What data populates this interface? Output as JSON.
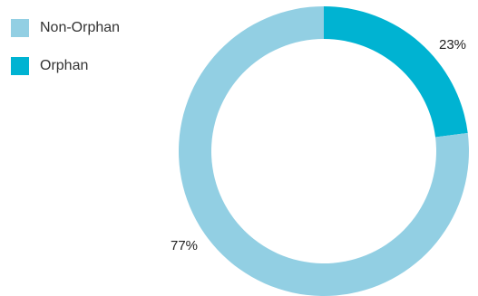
{
  "chart_data": {
    "type": "pie",
    "variant": "donut",
    "title": "",
    "legend_position": "top-left",
    "slices": [
      {
        "name": "Non-Orphan",
        "value": 77,
        "label": "77%",
        "color": "#92CFE3"
      },
      {
        "name": "Orphan",
        "value": 23,
        "label": "23%",
        "color": "#00B3D2"
      }
    ]
  }
}
